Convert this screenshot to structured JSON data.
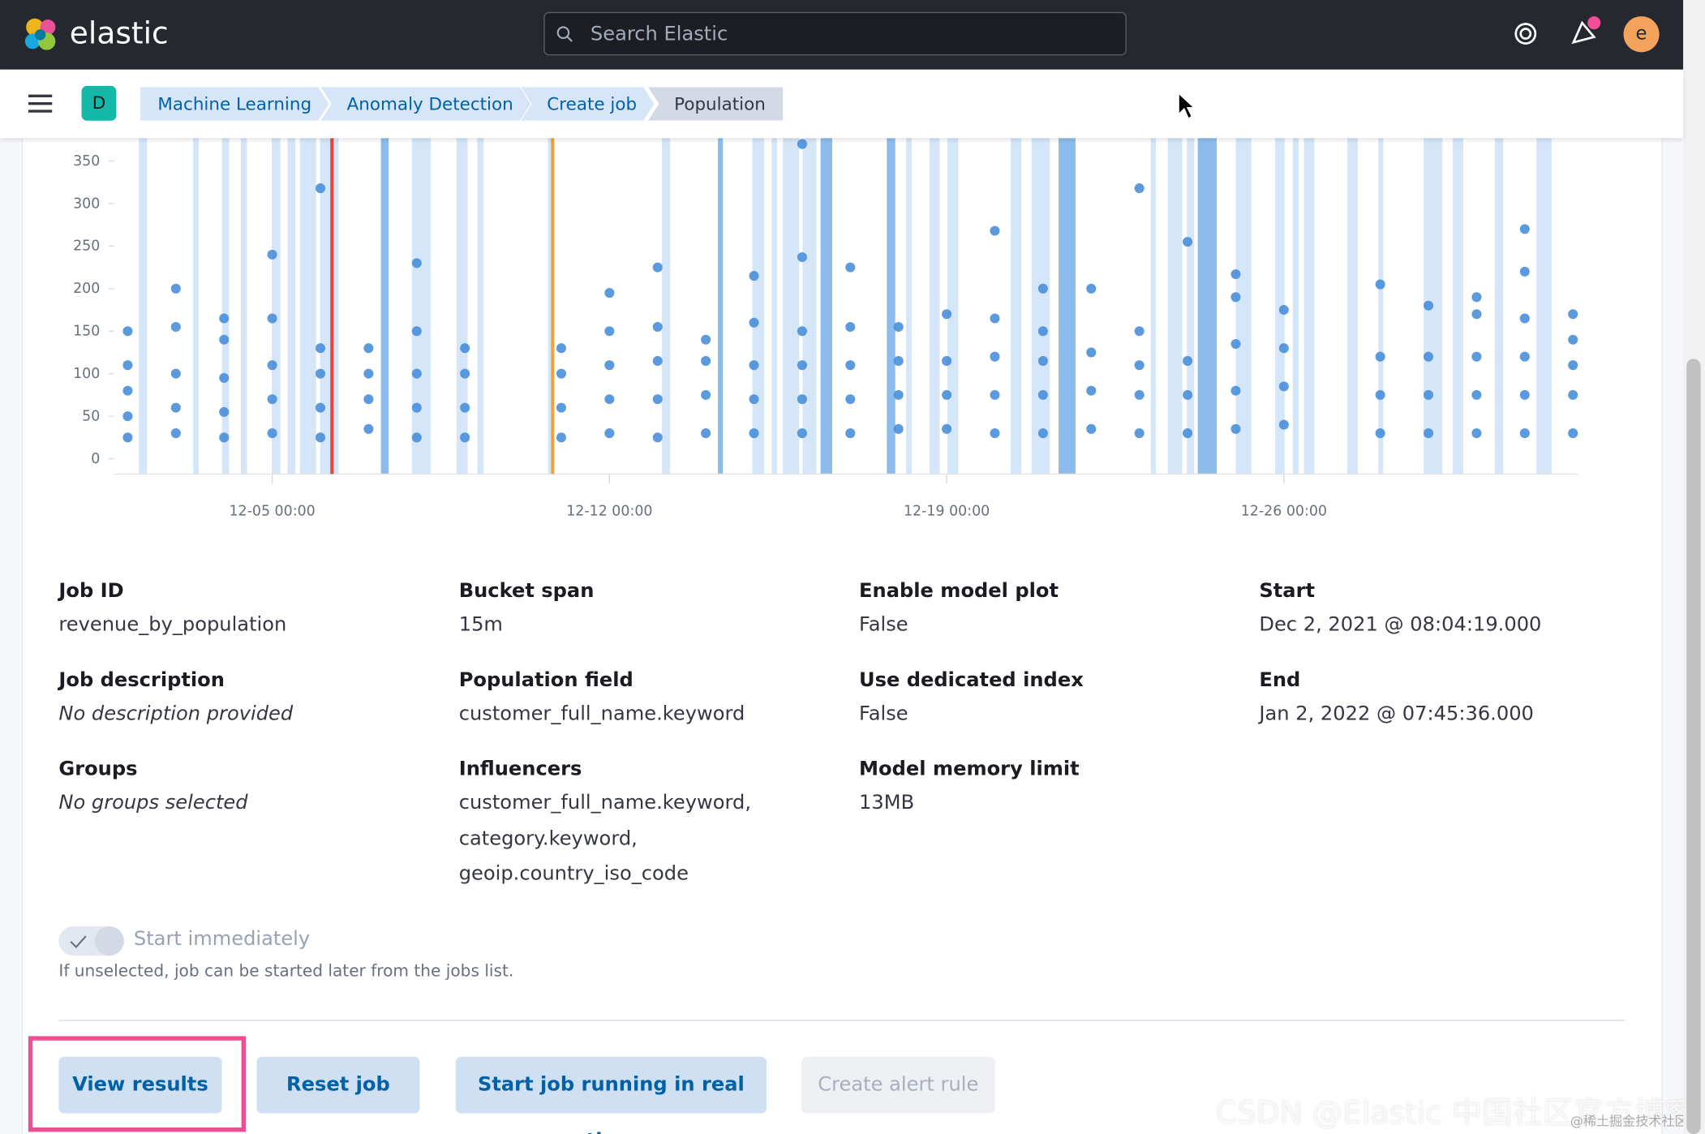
{
  "header": {
    "brand": "elastic",
    "search_placeholder": "Search Elastic",
    "avatar": "e"
  },
  "breadcrumbs": {
    "space": "D",
    "items": [
      "Machine Learning",
      "Anomaly Detection",
      "Create job",
      "Population"
    ]
  },
  "chart_data": {
    "type": "scatter",
    "color": "#3f88d8",
    "x": [
      2,
      2,
      2,
      2,
      2,
      3,
      3,
      3,
      3,
      3,
      4,
      4,
      4,
      4,
      4,
      5,
      5,
      5,
      5,
      5,
      6,
      6,
      6,
      6,
      6,
      7,
      7,
      7,
      7,
      8,
      8,
      8,
      8,
      8,
      9,
      9,
      9,
      9,
      11,
      11,
      11,
      11,
      12,
      12,
      12,
      12,
      12,
      13,
      13,
      13,
      13,
      13,
      14,
      14,
      14,
      14,
      15,
      15,
      15,
      15,
      15,
      16,
      16,
      16,
      16,
      16,
      16,
      17,
      17,
      17,
      17,
      17,
      18,
      18,
      18,
      18,
      19,
      19,
      19,
      19,
      20,
      20,
      20,
      20,
      20,
      21,
      21,
      21,
      21,
      21,
      22,
      22,
      22,
      22,
      23,
      23,
      23,
      23,
      23,
      24,
      24,
      24,
      24,
      25,
      25,
      25,
      25,
      25,
      26,
      26,
      26,
      26,
      28,
      28,
      28,
      28,
      29,
      29,
      29,
      29,
      30,
      30,
      30,
      30,
      30,
      31,
      31,
      31,
      31,
      31,
      31,
      32,
      32,
      32,
      32,
      32
    ],
    "y": [
      25,
      50,
      80,
      110,
      150,
      30,
      60,
      100,
      155,
      200,
      25,
      55,
      95,
      140,
      165,
      30,
      70,
      110,
      165,
      240,
      25,
      60,
      100,
      130,
      318,
      35,
      70,
      100,
      130,
      25,
      60,
      100,
      150,
      230,
      25,
      60,
      100,
      130,
      25,
      60,
      100,
      130,
      30,
      70,
      110,
      150,
      195,
      25,
      70,
      115,
      155,
      225,
      30,
      75,
      115,
      140,
      30,
      70,
      110,
      160,
      215,
      30,
      70,
      110,
      150,
      237,
      370,
      30,
      70,
      110,
      155,
      225,
      35,
      75,
      115,
      155,
      35,
      75,
      115,
      170,
      30,
      75,
      120,
      165,
      268,
      30,
      75,
      115,
      150,
      200,
      35,
      80,
      125,
      200,
      30,
      75,
      110,
      150,
      318,
      30,
      75,
      115,
      255,
      35,
      80,
      135,
      190,
      217,
      40,
      85,
      130,
      175,
      30,
      75,
      120,
      205,
      30,
      75,
      120,
      180,
      30,
      75,
      120,
      170,
      190,
      30,
      75,
      120,
      165,
      220,
      270,
      30,
      75,
      110,
      140,
      170
    ],
    "xlim": [
      1.9,
      32.1
    ],
    "ylim": [
      -18,
      377
    ],
    "yticks": [
      0,
      50,
      100,
      150,
      200,
      250,
      300,
      350
    ],
    "xticks": [
      {
        "value": 5,
        "label": "12-05 00:00"
      },
      {
        "value": 12,
        "label": "12-12 00:00"
      },
      {
        "value": 19,
        "label": "12-19 00:00"
      },
      {
        "value": 26,
        "label": "12-26 00:00"
      }
    ],
    "markers": [
      {
        "x": 6.24,
        "color": "#e7443c"
      },
      {
        "x": 10.82,
        "color": "#f5a035"
      }
    ]
  },
  "details": [
    [
      {
        "label": "Job ID",
        "value": "revenue_by_population"
      },
      {
        "label": "Job description",
        "value": "No description provided"
      },
      {
        "label": "Groups",
        "value": "No groups selected"
      }
    ],
    [
      {
        "label": "Bucket span",
        "value": "15m"
      },
      {
        "label": "Population field",
        "value": "customer_full_name.keyword"
      },
      {
        "label": "Influencers",
        "value": [
          "customer_full_name.keyword,",
          "category.keyword,",
          "geoip.country_iso_code"
        ]
      }
    ],
    [
      {
        "label": "Enable model plot",
        "value": "False"
      },
      {
        "label": "Use dedicated index",
        "value": "False"
      },
      {
        "label": "Model memory limit",
        "value": "13MB"
      }
    ],
    [
      {
        "label": "Start",
        "value": "Dec 2, 2021 @ 08:04:19.000"
      },
      {
        "label": "End",
        "value": "Jan 2, 2022 @ 07:45:36.000"
      }
    ]
  ],
  "toggle": {
    "label": "Start immediately",
    "help": "If unselected, job can be started later from the jobs list."
  },
  "buttons": [
    "View results",
    "Reset job",
    "Start job running in real time",
    "Create alert rule"
  ],
  "watermark": [
    "CSDN @Elastic 中国社区官方博客",
    "@稀土掘金技术社区"
  ]
}
